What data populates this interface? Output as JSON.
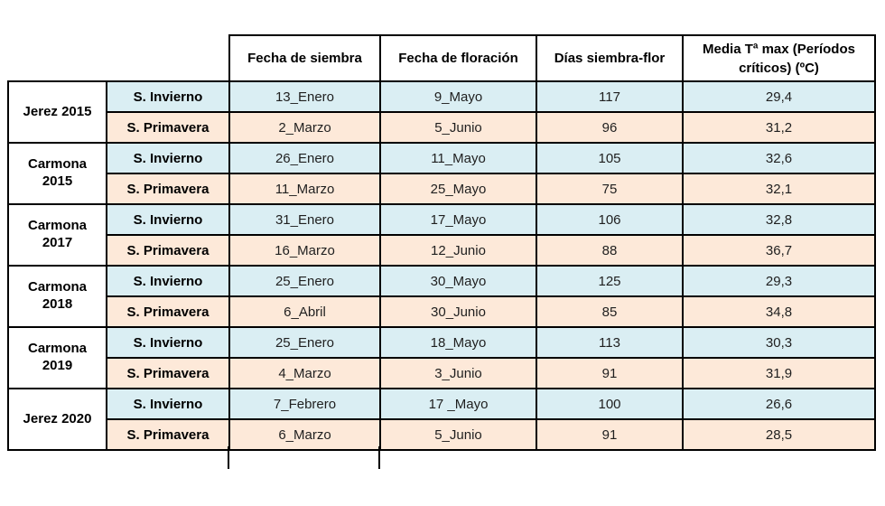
{
  "colors": {
    "winter_row_bg": "#daeef3",
    "spring_row_bg": "#fde9d9",
    "border": "#000000",
    "header_bg": "#ffffff"
  },
  "chart_data": {
    "type": "table",
    "column_headers": [
      "Fecha de siembra",
      "Fecha de floración",
      "Días siembra-flor",
      "Media Tª max (Períodos críticos) (ºC)"
    ],
    "groups": [
      {
        "label": "Jerez 2015",
        "label_lines": [
          "Jerez 2015"
        ],
        "rows": [
          {
            "season": "S. Invierno",
            "type": "invierno",
            "fecha_siembra": "13_Enero",
            "fecha_floracion": "9_Mayo",
            "dias_siembra_flor": "117",
            "media_t_max": "29,4"
          },
          {
            "season": "S. Primavera",
            "type": "primavera",
            "fecha_siembra": "2_Marzo",
            "fecha_floracion": "5_Junio",
            "dias_siembra_flor": "96",
            "media_t_max": "31,2"
          }
        ]
      },
      {
        "label": "Carmona 2015",
        "label_lines": [
          "Carmona",
          "2015"
        ],
        "rows": [
          {
            "season": "S. Invierno",
            "type": "invierno",
            "fecha_siembra": "26_Enero",
            "fecha_floracion": "11_Mayo",
            "dias_siembra_flor": "105",
            "media_t_max": "32,6"
          },
          {
            "season": "S. Primavera",
            "type": "primavera",
            "fecha_siembra": "11_Marzo",
            "fecha_floracion": "25_Mayo",
            "dias_siembra_flor": "75",
            "media_t_max": "32,1"
          }
        ]
      },
      {
        "label": "Carmona 2017",
        "label_lines": [
          "Carmona",
          "2017"
        ],
        "rows": [
          {
            "season": "S. Invierno",
            "type": "invierno",
            "fecha_siembra": "31_Enero",
            "fecha_floracion": "17_Mayo",
            "dias_siembra_flor": "106",
            "media_t_max": "32,8"
          },
          {
            "season": "S. Primavera",
            "type": "primavera",
            "fecha_siembra": "16_Marzo",
            "fecha_floracion": "12_Junio",
            "dias_siembra_flor": "88",
            "media_t_max": "36,7"
          }
        ]
      },
      {
        "label": "Carmona 2018",
        "label_lines": [
          "Carmona",
          "2018"
        ],
        "rows": [
          {
            "season": "S. Invierno",
            "type": "invierno",
            "fecha_siembra": "25_Enero",
            "fecha_floracion": "30_Mayo",
            "dias_siembra_flor": "125",
            "media_t_max": "29,3"
          },
          {
            "season": "S. Primavera",
            "type": "primavera",
            "fecha_siembra": "6_Abril",
            "fecha_floracion": "30_Junio",
            "dias_siembra_flor": "85",
            "media_t_max": "34,8"
          }
        ]
      },
      {
        "label": "Carmona 2019",
        "label_lines": [
          "Carmona",
          "2019"
        ],
        "rows": [
          {
            "season": "S. Invierno",
            "type": "invierno",
            "fecha_siembra": "25_Enero",
            "fecha_floracion": "18_Mayo",
            "dias_siembra_flor": "113",
            "media_t_max": "30,3"
          },
          {
            "season": "S. Primavera",
            "type": "primavera",
            "fecha_siembra": "4_Marzo",
            "fecha_floracion": "3_Junio",
            "dias_siembra_flor": "91",
            "media_t_max": "31,9"
          }
        ]
      },
      {
        "label": "Jerez 2020",
        "label_lines": [
          "Jerez 2020"
        ],
        "rows": [
          {
            "season": "S. Invierno",
            "type": "invierno",
            "fecha_siembra": "7_Febrero",
            "fecha_floracion": "17 _Mayo",
            "dias_siembra_flor": "100",
            "media_t_max": "26,6"
          },
          {
            "season": "S. Primavera",
            "type": "primavera",
            "fecha_siembra": "6_Marzo",
            "fecha_floracion": "5_Junio",
            "dias_siembra_flor": "91",
            "media_t_max": "28,5"
          }
        ]
      }
    ]
  }
}
